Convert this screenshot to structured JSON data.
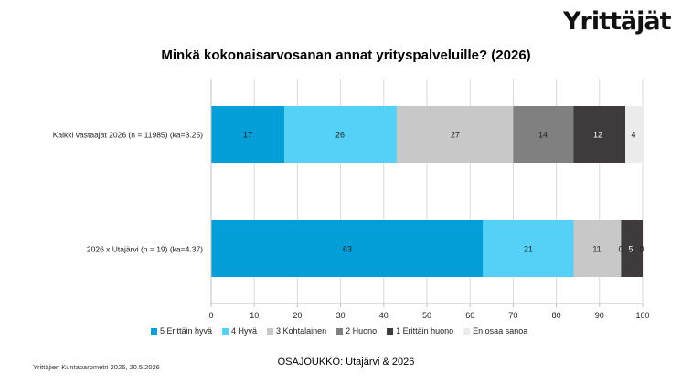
{
  "brand": {
    "logo_text": "Yrittäjät"
  },
  "footer": {
    "source": "Yrittäjien Kuntabarometri 2026, 20.5.2026",
    "subset": "OSAJOUKKO: Utajärvi & 2026"
  },
  "chart_data": {
    "type": "bar",
    "orientation": "horizontal",
    "stacked": true,
    "title": "Minkä kokonaisarvosanan annat yrityspalveluille? (2026)",
    "xlabel": "",
    "ylabel": "",
    "xlim": [
      0,
      100
    ],
    "xticks": [
      0,
      10,
      20,
      30,
      40,
      50,
      60,
      70,
      80,
      90,
      100
    ],
    "grid": true,
    "legend_position": "bottom",
    "categories": [
      "Kaikki vastaajat 2026 (n = 11985) (ka=3.25)",
      "2026 x Utajärvi (n = 19) (ka=4.37)"
    ],
    "series": [
      {
        "name": "5 Erittäin hyvä",
        "color": "#049fd9",
        "values": [
          17,
          63
        ]
      },
      {
        "name": "4 Hyvä",
        "color": "#55d1f7",
        "values": [
          26,
          21
        ]
      },
      {
        "name": "3 Kohtalainen",
        "color": "#c8c8c8",
        "values": [
          27,
          11
        ]
      },
      {
        "name": "2 Huono",
        "color": "#808080",
        "values": [
          14,
          0
        ]
      },
      {
        "name": "1 Erittäin huono",
        "color": "#3f3a3b",
        "values": [
          12,
          5
        ]
      },
      {
        "name": "En osaa sanoa",
        "color": "#ececec",
        "values": [
          4,
          0
        ]
      }
    ]
  }
}
